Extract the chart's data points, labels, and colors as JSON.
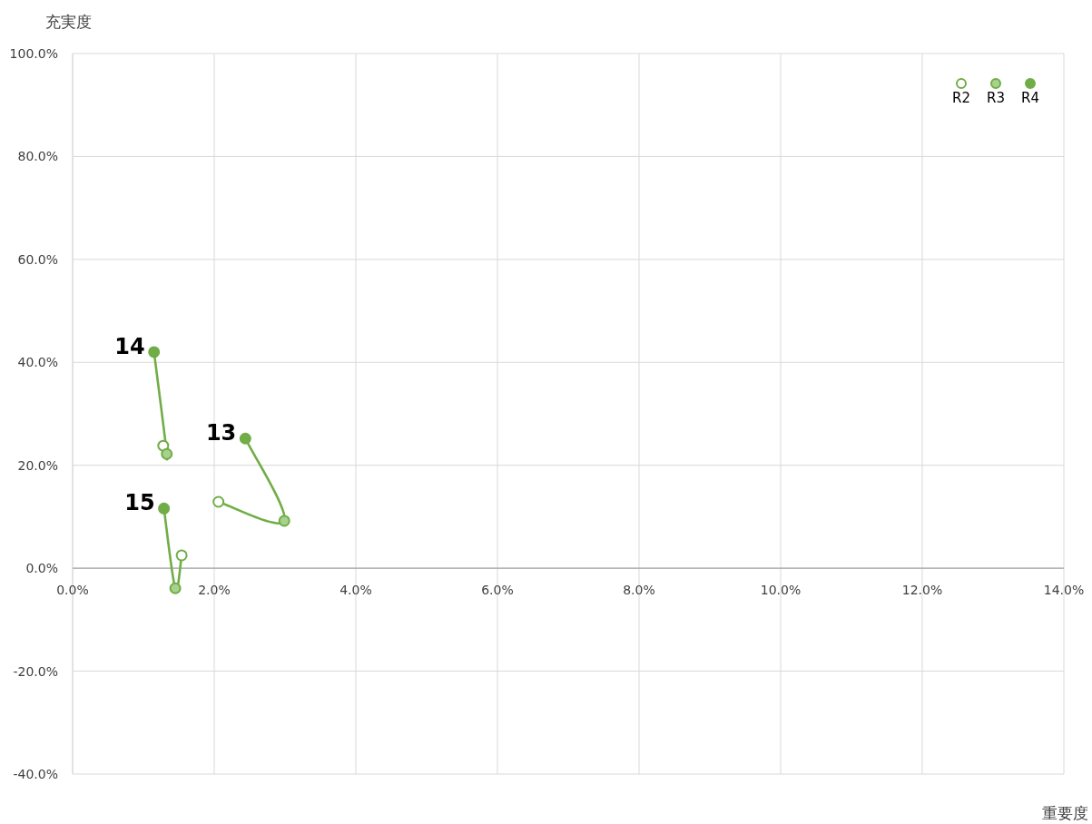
{
  "chart_data": {
    "type": "scatter",
    "xlabel": "重要度",
    "ylabel": "充実度",
    "xlim": [
      0,
      14
    ],
    "ylim": [
      -40,
      100
    ],
    "xticks": [
      {
        "value": 0,
        "label": "0.0%"
      },
      {
        "value": 2,
        "label": "2.0%"
      },
      {
        "value": 4,
        "label": "4.0%"
      },
      {
        "value": 6,
        "label": "6.0%"
      },
      {
        "value": 8,
        "label": "8.0%"
      },
      {
        "value": 10,
        "label": "10.0%"
      },
      {
        "value": 12,
        "label": "12.0%"
      },
      {
        "value": 14,
        "label": "14.0%"
      }
    ],
    "yticks": [
      {
        "value": -40,
        "label": "-40.0%"
      },
      {
        "value": -20,
        "label": "-20.0%"
      },
      {
        "value": 0,
        "label": "0.0%"
      },
      {
        "value": 20,
        "label": "20.0%"
      },
      {
        "value": 40,
        "label": "40.0%"
      },
      {
        "value": 60,
        "label": "60.0%"
      },
      {
        "value": 80,
        "label": "80.0%"
      },
      {
        "value": 100,
        "label": "100.0%"
      }
    ],
    "grid": true,
    "legend": "top right",
    "series": [
      {
        "name": "13",
        "type": "line",
        "color": "#70ad47",
        "x": [
          2.06,
          2.99,
          2.44
        ],
        "values": [
          12.9,
          9.2,
          25.2
        ]
      },
      {
        "name": "14",
        "type": "line",
        "color": "#70ad47",
        "x": [
          1.28,
          1.33,
          1.15
        ],
        "values": [
          23.8,
          22.2,
          42.0
        ]
      },
      {
        "name": "15",
        "type": "line",
        "color": "#70ad47",
        "x": [
          1.54,
          1.45,
          1.29
        ],
        "values": [
          2.5,
          -3.9,
          11.6
        ]
      },
      {
        "name": "R2",
        "marker": "circle",
        "color": "#ffffff",
        "x": [
          2.06,
          1.28,
          1.54
        ],
        "values": [
          12.9,
          23.8,
          2.5
        ]
      },
      {
        "name": "R3",
        "marker": "circle",
        "color": "#a9d18e",
        "x": [
          2.99,
          1.33,
          1.45
        ],
        "values": [
          9.2,
          22.2,
          -3.9
        ]
      },
      {
        "name": "R4",
        "marker": "circle",
        "color": "#70ad47",
        "x": [
          2.44,
          1.15,
          1.29
        ],
        "values": [
          25.2,
          42.0,
          11.6
        ]
      }
    ]
  }
}
